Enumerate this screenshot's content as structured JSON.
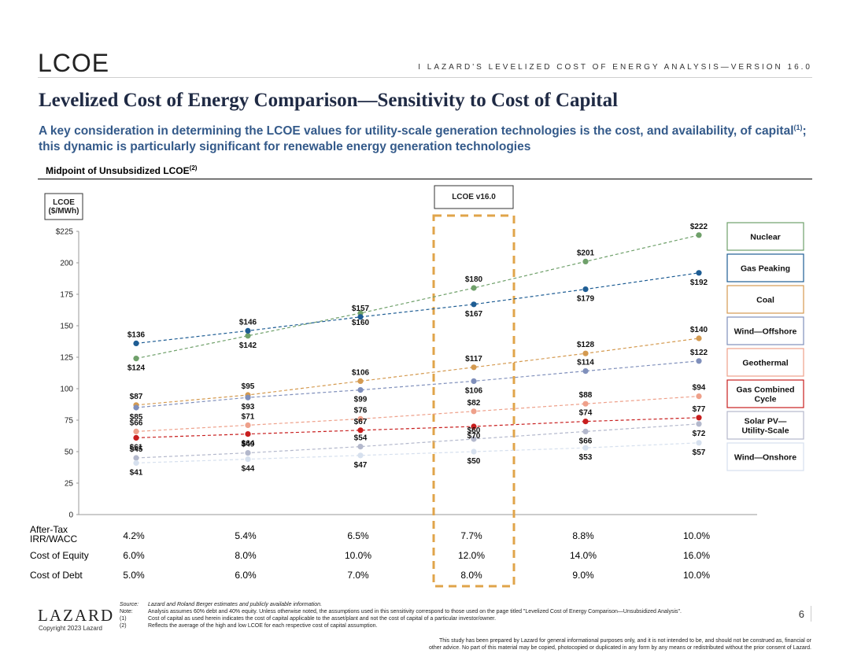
{
  "header": {
    "logo_text": "LCOE",
    "tag": "I  LAZARD'S LEVELIZED COST OF ENERGY ANALYSIS—VERSION 16.0"
  },
  "title": "Levelized Cost of Energy Comparison—Sensitivity to Cost of Capital",
  "subtitle": {
    "before": "A key consideration in determining the LCOE values for utility-scale generation technologies is the cost, and availability, of capital",
    "sup": "(1)",
    "after": "; this dynamic is particularly significant for renewable energy generation technologies"
  },
  "section": {
    "label": "Midpoint of Unsubsidized LCOE",
    "sup": "(2)"
  },
  "chart_data": {
    "type": "line",
    "ylabel": [
      "LCOE",
      "($/MWh)"
    ],
    "ylim": [
      0,
      225
    ],
    "yticks": [
      {
        "v": 225,
        "label": "$225"
      },
      {
        "v": 200,
        "label": "200"
      },
      {
        "v": 175,
        "label": "175"
      },
      {
        "v": 150,
        "label": "150"
      },
      {
        "v": 125,
        "label": "125"
      },
      {
        "v": 100,
        "label": "100"
      },
      {
        "v": 75,
        "label": "75"
      },
      {
        "v": 50,
        "label": "50"
      },
      {
        "v": 25,
        "label": "25"
      },
      {
        "v": 0,
        "label": "0"
      }
    ],
    "highlight_index": 3,
    "highlight_label": "LCOE v16.0",
    "series": [
      {
        "name": "Nuclear",
        "color": "#6fa06a",
        "values": [
          124,
          142,
          160,
          180,
          201,
          222
        ],
        "labels": [
          "$124",
          "$142",
          "$160",
          "$180",
          "$201",
          "$222"
        ],
        "pos": [
          "below",
          "below",
          "below",
          "above",
          "above",
          "above"
        ]
      },
      {
        "name": "Gas Peaking",
        "color": "#1e5d94",
        "values": [
          136,
          146,
          157,
          167,
          179,
          192
        ],
        "labels": [
          "$136",
          "$146",
          "$157",
          "$167",
          "$179",
          "$192"
        ],
        "pos": [
          "above",
          "above",
          "above",
          "below",
          "below",
          "below"
        ]
      },
      {
        "name": "Coal",
        "color": "#d49a50",
        "values": [
          87,
          95,
          106,
          117,
          128,
          140
        ],
        "labels": [
          "$87",
          "$95",
          "$106",
          "$117",
          "$128",
          "$140"
        ],
        "pos": [
          "above",
          "above",
          "above",
          "above",
          "above",
          "above"
        ]
      },
      {
        "name": "Wind—Offshore",
        "color": "#7f8fbb",
        "values": [
          85,
          93,
          99,
          106,
          114,
          122
        ],
        "labels": [
          "$85",
          "$93",
          "$99",
          "$106",
          "$114",
          "$122"
        ],
        "pos": [
          "below",
          "below",
          "below",
          "below",
          "above",
          "above"
        ]
      },
      {
        "name": "Geothermal",
        "color": "#eea08a",
        "values": [
          66,
          71,
          76,
          82,
          88,
          94
        ],
        "labels": [
          "$66",
          "$71",
          "$76",
          "$82",
          "$88",
          "$94"
        ],
        "pos": [
          "above",
          "above",
          "above",
          "above",
          "above",
          "above"
        ]
      },
      {
        "name": "Gas Combined Cycle",
        "color": "#c81e1e",
        "values": [
          61,
          64,
          67,
          70,
          74,
          77
        ],
        "labels": [
          "$61",
          "$64",
          "$67",
          "$70",
          "$74",
          "$77"
        ],
        "pos": [
          "below",
          "below",
          "above",
          "below",
          "above",
          "above"
        ]
      },
      {
        "name": "Solar PV—Utility-Scale",
        "color": "#b3b8cc",
        "values": [
          45,
          49,
          54,
          60,
          66,
          72
        ],
        "labels": [
          "$45",
          "$49",
          "$54",
          "$60",
          "$66",
          "$72"
        ],
        "pos": [
          "above",
          "above",
          "above",
          "above",
          "below",
          "below"
        ]
      },
      {
        "name": "Wind—Onshore",
        "color": "#d6e0ee",
        "values": [
          41,
          44,
          47,
          50,
          53,
          57
        ],
        "labels": [
          "$41",
          "$44",
          "$47",
          "$50",
          "$53",
          "$57"
        ],
        "pos": [
          "below",
          "below",
          "below",
          "below",
          "below",
          "below"
        ]
      }
    ],
    "legend": [
      {
        "lines": [
          "Nuclear"
        ],
        "color": "#6fa06a"
      },
      {
        "lines": [
          "Gas Peaking"
        ],
        "color": "#1e5d94"
      },
      {
        "lines": [
          "Coal"
        ],
        "color": "#d49a50"
      },
      {
        "lines": [
          "Wind—Offshore"
        ],
        "color": "#7f8fbb"
      },
      {
        "lines": [
          "Geothermal"
        ],
        "color": "#eea08a"
      },
      {
        "lines": [
          "Gas Combined",
          "Cycle"
        ],
        "color": "#c81e1e"
      },
      {
        "lines": [
          "Solar PV—",
          "Utility-Scale"
        ],
        "color": "#b3b8cc"
      },
      {
        "lines": [
          "Wind—Onshore"
        ],
        "color": "#d6e0ee"
      }
    ],
    "table": [
      {
        "label": [
          "After-Tax",
          "IRR/WACC"
        ],
        "values": [
          "4.2%",
          "5.4%",
          "6.5%",
          "7.7%",
          "8.8%",
          "10.0%"
        ]
      },
      {
        "label": [
          "Cost of Equity"
        ],
        "values": [
          "6.0%",
          "8.0%",
          "10.0%",
          "12.0%",
          "14.0%",
          "16.0%"
        ]
      },
      {
        "label": [
          "Cost of Debt"
        ],
        "values": [
          "5.0%",
          "6.0%",
          "7.0%",
          "8.0%",
          "9.0%",
          "10.0%"
        ]
      }
    ]
  },
  "footer": {
    "logo": "LAZARD",
    "copyright": "Copyright 2023 Lazard",
    "notes": [
      {
        "key": "Source:",
        "text": "Lazard and Roland Berger estimates and publicly available information.",
        "italic": true
      },
      {
        "key": "Note:",
        "text": "Analysis assumes 60% debt and 40% equity. Unless otherwise noted, the assumptions used in this sensitivity correspond to those used on the page titled \"Levelized Cost of Energy Comparison—Unsubsidized Analysis\".",
        "italic": false
      },
      {
        "key": "(1)",
        "text": "Cost of capital as used herein indicates the cost of capital applicable to the asset/plant and not the cost of capital of a particular investor/owner.",
        "italic": false
      },
      {
        "key": "(2)",
        "text": "Reflects the average of the high and low LCOE for each respective cost of capital assumption.",
        "italic": false
      }
    ],
    "page_number": "6",
    "disclaimer_1": "This study has been prepared by Lazard for general informational purposes only, and it is not intended to be, and should not be construed as, financial or",
    "disclaimer_2": "other advice. No part of this material may be copied, photocopied or duplicated in any form by any means or redistributed without the prior consent of Lazard."
  }
}
